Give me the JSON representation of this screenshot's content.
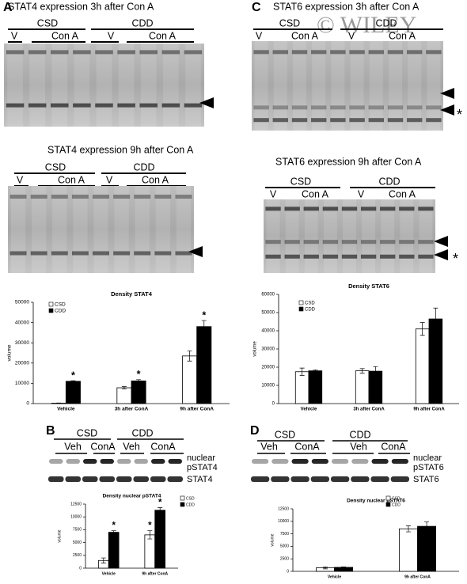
{
  "labels": {
    "A": "A",
    "B": "B",
    "C": "C",
    "D": "D"
  },
  "watermark": "© WILEY",
  "blot_a1": {
    "title": "STAT4 expression 3h after Con A",
    "groups": [
      "CSD",
      "CDD"
    ],
    "lanes": [
      "V",
      "Con A",
      "V",
      "Con A"
    ]
  },
  "blot_a2": {
    "title": "STAT4 expression 9h after Con A",
    "groups": [
      "CSD",
      "CDD"
    ],
    "lanes": [
      "V",
      "Con A",
      "V",
      "Con A"
    ]
  },
  "blot_c1": {
    "title": "STAT6 expression 3h after Con A",
    "groups": [
      "CSD",
      "CDD"
    ],
    "lanes": [
      "V",
      "Con A",
      "V",
      "Con A"
    ],
    "marker": "*"
  },
  "blot_c2": {
    "title": "STAT6 expression 9h after Con A",
    "groups": [
      "CSD",
      "CDD"
    ],
    "lanes": [
      "V",
      "Con A",
      "V",
      "Con A"
    ],
    "marker": "*"
  },
  "blot_b": {
    "groups": [
      "CSD",
      "CDD"
    ],
    "lanes": [
      "Veh",
      "ConA",
      "Veh",
      "ConA"
    ],
    "top_label": [
      "nuclear",
      "pSTAT4"
    ],
    "bottom_label": "STAT4"
  },
  "blot_d": {
    "groups": [
      "CSD",
      "CDD"
    ],
    "lanes": [
      "Veh",
      "ConA",
      "Veh",
      "ConA"
    ],
    "top_label": [
      "nuclear",
      "pSTAT6"
    ],
    "bottom_label": "STAT6"
  },
  "chart_data": [
    {
      "type": "bar",
      "title": "Density STAT4",
      "y_label": "volume",
      "categories": [
        "Vehicle",
        "3h after ConA",
        "9h after ConA"
      ],
      "series": [
        {
          "name": "CSD",
          "color": "#ffffff",
          "values": [
            200,
            7800,
            23500
          ],
          "errors": [
            100,
            600,
            2500
          ]
        },
        {
          "name": "CDD",
          "color": "#000000",
          "values": [
            11000,
            11200,
            38000
          ],
          "errors": [
            300,
            600,
            3000
          ]
        }
      ],
      "ylim": [
        0,
        50000
      ],
      "yticks": [
        0,
        10000,
        20000,
        30000,
        40000,
        50000
      ],
      "annotations": [
        "*",
        "*",
        "*"
      ]
    },
    {
      "type": "bar",
      "title": "Density STAT6",
      "y_label": "volume",
      "categories": [
        "Vehicle",
        "3h after ConA",
        "9h after ConA"
      ],
      "series": [
        {
          "name": "CSD",
          "color": "#ffffff",
          "values": [
            17500,
            18000,
            41000
          ],
          "errors": [
            2000,
            1200,
            3500
          ]
        },
        {
          "name": "CDD",
          "color": "#000000",
          "values": [
            18000,
            17800,
            46500
          ],
          "errors": [
            500,
            2500,
            6000
          ]
        }
      ],
      "ylim": [
        0,
        60000
      ],
      "yticks": [
        0,
        10000,
        20000,
        30000,
        40000,
        50000,
        60000
      ]
    },
    {
      "type": "bar",
      "title": "Density nuclear pSTAT4",
      "y_label": "volume",
      "categories": [
        "Vehicle",
        "9h after ConA"
      ],
      "series": [
        {
          "name": "CSD",
          "color": "#ffffff",
          "values": [
            1500,
            6500
          ],
          "errors": [
            500,
            800
          ]
        },
        {
          "name": "CDD",
          "color": "#000000",
          "values": [
            7000,
            11300
          ],
          "errors": [
            300,
            500
          ]
        }
      ],
      "ylim": [
        0,
        12500
      ],
      "yticks": [
        0,
        2500,
        5000,
        7500,
        10000,
        12500
      ],
      "annotations": [
        "*",
        "*",
        "*"
      ]
    },
    {
      "type": "bar",
      "title": "Density nuclear pSTAT6",
      "y_label": "volume",
      "categories": [
        "Vehicle",
        "9h after ConA"
      ],
      "series": [
        {
          "name": "CSD",
          "color": "#ffffff",
          "values": [
            700,
            8500
          ],
          "errors": [
            200,
            600
          ]
        },
        {
          "name": "CDD",
          "color": "#000000",
          "values": [
            800,
            9000
          ],
          "errors": [
            100,
            900
          ]
        }
      ],
      "ylim": [
        0,
        12500
      ],
      "yticks": [
        0,
        2500,
        5000,
        7500,
        10000,
        12500
      ]
    }
  ]
}
